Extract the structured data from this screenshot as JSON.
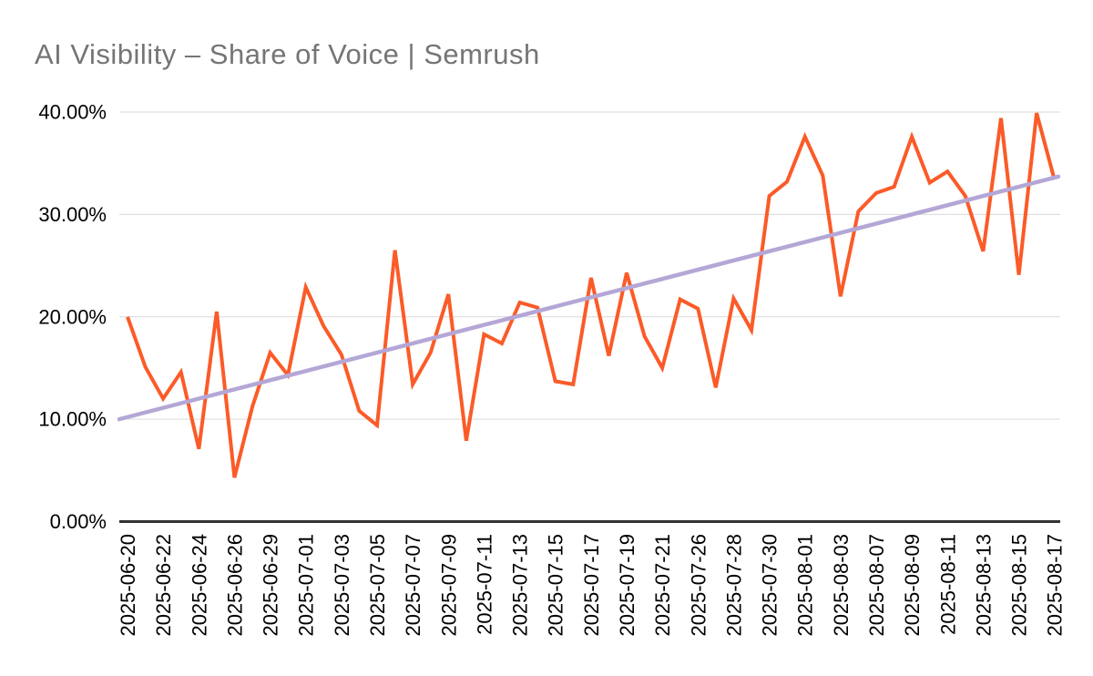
{
  "chart_data": {
    "type": "line",
    "title": "AI Visibility – Share of Voice | Semrush",
    "xlabel": "",
    "ylabel": "",
    "ylim": [
      0,
      40
    ],
    "grid": true,
    "legend_position": "none",
    "y_tick_labels": [
      "0.00%",
      "10.00%",
      "20.00%",
      "30.00%",
      "40.00%"
    ],
    "x_tick_labels": [
      "2025-06-20",
      "2025-06-22",
      "2025-06-24",
      "2025-06-26",
      "2025-06-29",
      "2025-07-01",
      "2025-07-03",
      "2025-07-05",
      "2025-07-07",
      "2025-07-09",
      "2025-07-11",
      "2025-07-13",
      "2025-07-15",
      "2025-07-17",
      "2025-07-19",
      "2025-07-21",
      "2025-07-26",
      "2025-07-28",
      "2025-07-30",
      "2025-08-01",
      "2025-08-03",
      "2025-08-07",
      "2025-08-09",
      "2025-08-11",
      "2025-08-13",
      "2025-08-15",
      "2025-08-17"
    ],
    "note_points_per_tick_interval": 2,
    "series": [
      {
        "name": "AI Visibility Share of Voice",
        "kind": "data-line",
        "color": "#FB5B28",
        "unit": "%",
        "values": [
          20.0,
          15.1,
          12.0,
          14.6,
          7.1,
          20.5,
          4.3,
          11.2,
          16.5,
          14.3,
          22.9,
          19.1,
          16.3,
          10.8,
          9.4,
          26.5,
          13.4,
          16.5,
          22.2,
          7.9,
          18.3,
          17.4,
          21.4,
          20.9,
          13.7,
          13.4,
          23.8,
          16.2,
          24.3,
          18.1,
          15.0,
          21.7,
          20.8,
          13.1,
          21.8,
          18.7,
          31.8,
          33.2,
          37.6,
          33.8,
          22.0,
          30.3,
          32.1,
          32.7,
          37.6,
          33.1,
          34.2,
          31.8,
          26.4,
          39.4,
          24.1,
          39.9,
          33.4
        ]
      },
      {
        "name": "Linear trendline",
        "kind": "trendline",
        "color": "#B4A7D6",
        "unit": "%",
        "start_value": 10.0,
        "end_value": 33.7
      }
    ],
    "colors": {
      "title": "#757575",
      "axis_labels": "#000000",
      "gridline": "#D9D9D9",
      "baseline": "#333333",
      "background": "#FFFFFF"
    }
  }
}
